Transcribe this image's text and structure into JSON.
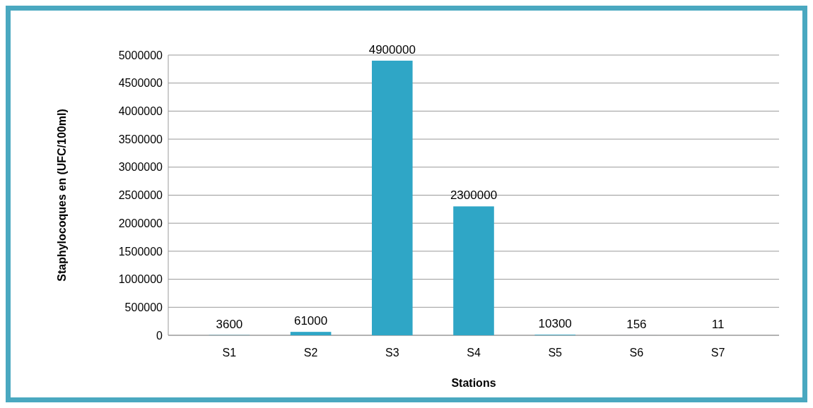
{
  "chart_data": {
    "type": "bar",
    "xlabel": "Stations",
    "ylabel": "Staphylocoques  en (UFC/100ml)",
    "categories": [
      "S1",
      "S2",
      "S3",
      "S4",
      "S5",
      "S6",
      "S7"
    ],
    "values": [
      3600,
      61000,
      4900000,
      2300000,
      10300,
      156,
      11
    ],
    "color": "#2fa6c6",
    "data_labels": true,
    "grid": "y",
    "ylim": [
      0,
      5000000
    ],
    "yticks": [
      0,
      500000,
      1000000,
      1500000,
      2000000,
      2500000,
      3000000,
      3500000,
      4000000,
      4500000,
      5000000
    ]
  }
}
